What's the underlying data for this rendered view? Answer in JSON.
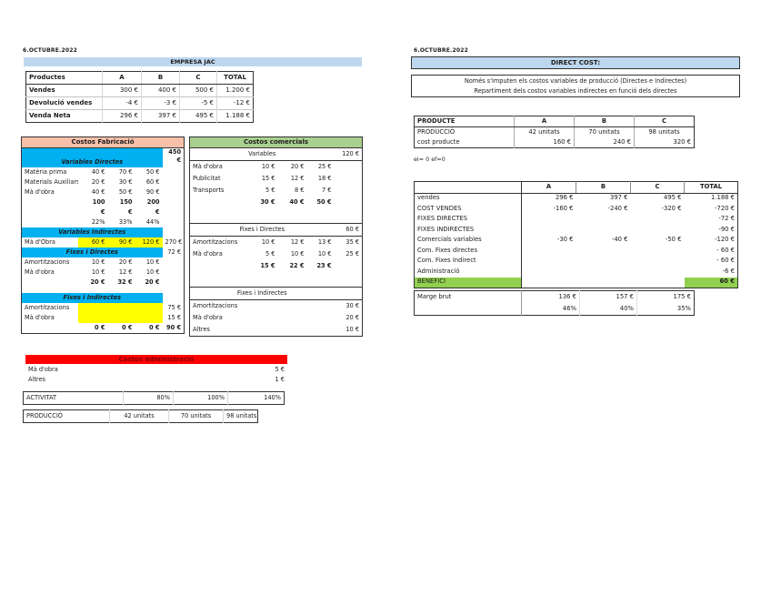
{
  "colors": {
    "lightblue": "#BDD7EE",
    "cyan": "#00B0F0",
    "salmon": "#F6BFA9",
    "green": "#A9D08E",
    "red": "#FF0000",
    "redtext": "#7F0000",
    "yellow": "#FFFF00",
    "benefit": "#92D050"
  },
  "left": {
    "date": "6.OCTUBRE.2022",
    "title_band": "EMPRESA JAC",
    "products": {
      "rows": [
        {
          "cls": "hd",
          "cells": [
            "Productes",
            {
              "t": "A",
              "c": "c"
            },
            {
              "t": "B",
              "c": "c"
            },
            {
              "t": "C",
              "c": "c"
            },
            {
              "t": "TOTAL",
              "c": "c"
            }
          ]
        },
        {
          "cells": [
            "Vendes",
            {
              "t": "300 €",
              "c": "r"
            },
            {
              "t": "400 €",
              "c": "r"
            },
            {
              "t": "500 €",
              "c": "r"
            },
            {
              "t": "1.200 €",
              "c": "r"
            }
          ]
        },
        {
          "cells": [
            "Devolució vendes",
            {
              "t": "-4 €",
              "c": "r"
            },
            {
              "t": "-3 €",
              "c": "r"
            },
            {
              "t": "-5 €",
              "c": "r"
            },
            {
              "t": "-12 €",
              "c": "r"
            }
          ]
        },
        {
          "cells": [
            "Venda Neta",
            {
              "t": "296 €",
              "c": "r"
            },
            {
              "t": "397 €",
              "c": "r"
            },
            {
              "t": "495 €",
              "c": "r"
            },
            {
              "t": "1.188 €",
              "c": "r"
            }
          ]
        }
      ]
    },
    "fabricacio": {
      "rows": [
        {
          "cls": "title",
          "cells": [
            {
              "t": "Costos Fabricació",
              "s": 5,
              "c": "salmon"
            }
          ]
        },
        {
          "cls": "h2",
          "cells": [
            {
              "t": "Variables Directes",
              "s": 4,
              "c": "cyan"
            },
            {
              "t": "450\n€",
              "c": "r pre b"
            }
          ]
        },
        {
          "cells": [
            "Matèria prima",
            {
              "t": "40 €",
              "c": "r"
            },
            {
              "t": "70 €",
              "c": "r"
            },
            {
              "t": "50 €",
              "c": "r"
            },
            ""
          ]
        },
        {
          "cells": [
            "Materials Auxiliars",
            {
              "t": "20 €",
              "c": "r"
            },
            {
              "t": "30 €",
              "c": "r"
            },
            {
              "t": "60 €",
              "c": "r"
            },
            ""
          ]
        },
        {
          "cells": [
            "Mà d'obra",
            {
              "t": "40 €",
              "c": "r"
            },
            {
              "t": "50 €",
              "c": "r"
            },
            {
              "t": "90 €",
              "c": "r"
            },
            ""
          ]
        },
        {
          "cells": [
            "",
            {
              "t": "100",
              "c": "r b"
            },
            {
              "t": "150",
              "c": "r b"
            },
            {
              "t": "200",
              "c": "r b"
            },
            ""
          ]
        },
        {
          "cells": [
            "",
            {
              "t": "€",
              "c": "r b"
            },
            {
              "t": "€",
              "c": "r b"
            },
            {
              "t": "€",
              "c": "r b"
            },
            ""
          ]
        },
        {
          "cells": [
            "",
            {
              "t": "22%",
              "c": "r"
            },
            {
              "t": "33%",
              "c": "r"
            },
            {
              "t": "44%",
              "c": "r"
            },
            ""
          ]
        },
        {
          "cells": [
            {
              "t": "Variables Indirectes",
              "s": 4,
              "c": "cyan"
            },
            ""
          ]
        },
        {
          "cells": [
            "Mà d'Obra",
            {
              "t": "60 €",
              "c": "r ylw"
            },
            {
              "t": "90 €",
              "c": "r ylw"
            },
            {
              "t": "120 €",
              "c": "r ylw"
            },
            {
              "t": "270 €",
              "c": "r"
            }
          ]
        },
        {
          "cells": [
            {
              "t": "Fixes i Directes",
              "s": 4,
              "c": "cyan"
            },
            {
              "t": "72 €",
              "c": "r"
            }
          ]
        },
        {
          "cells": [
            "Amortitzacions",
            {
              "t": "10 €",
              "c": "r"
            },
            {
              "t": "20 €",
              "c": "r"
            },
            {
              "t": "10 €",
              "c": "r"
            },
            ""
          ]
        },
        {
          "cells": [
            "Mà d'obra",
            {
              "t": "10 €",
              "c": "r"
            },
            {
              "t": "12 €",
              "c": "r"
            },
            {
              "t": "10 €",
              "c": "r"
            },
            ""
          ]
        },
        {
          "cells": [
            "",
            {
              "t": "20 €",
              "c": "r b"
            },
            {
              "t": "32 €",
              "c": "r b"
            },
            {
              "t": "20 €",
              "c": "r b"
            },
            ""
          ]
        },
        {
          "cls": "gap",
          "cells": [
            {
              "t": "",
              "s": 5
            }
          ]
        },
        {
          "cells": [
            {
              "t": "Fixes i Indirectes",
              "s": 4,
              "c": "cyan"
            },
            ""
          ]
        },
        {
          "cells": [
            "Amortitzacions",
            {
              "t": "",
              "c": "ylw"
            },
            {
              "t": "",
              "c": "ylw"
            },
            {
              "t": "",
              "c": "ylw"
            },
            {
              "t": "75 €",
              "c": "r"
            }
          ]
        },
        {
          "cells": [
            "Mà d'obra",
            {
              "t": "",
              "c": "ylw"
            },
            {
              "t": "",
              "c": "ylw"
            },
            {
              "t": "",
              "c": "ylw"
            },
            {
              "t": "15 €",
              "c": "r"
            }
          ]
        },
        {
          "cells": [
            "",
            {
              "t": "0 €",
              "c": "r b"
            },
            {
              "t": "0 €",
              "c": "r b"
            },
            {
              "t": "0 €",
              "c": "r b"
            },
            {
              "t": "90 €",
              "c": "r b"
            }
          ]
        }
      ]
    },
    "comercials": {
      "rows": [
        {
          "cls": "title",
          "cells": [
            {
              "t": "Costos comercials",
              "s": 5
            }
          ]
        },
        {
          "cls": "sub",
          "cells": [
            {
              "t": "Variables",
              "s": 4,
              "c": "c"
            },
            {
              "t": "120 €",
              "c": "r"
            }
          ]
        },
        {
          "cells": [
            "Mà d'obra",
            {
              "t": "10 €",
              "c": "r"
            },
            {
              "t": "20 €",
              "c": "r"
            },
            {
              "t": "25 €",
              "c": "r"
            },
            ""
          ]
        },
        {
          "cells": [
            "Publicitat",
            {
              "t": "15 €",
              "c": "r"
            },
            {
              "t": "12 €",
              "c": "r"
            },
            {
              "t": "18 €",
              "c": "r"
            },
            ""
          ]
        },
        {
          "cells": [
            "Transports",
            {
              "t": "5 €",
              "c": "r"
            },
            {
              "t": "8 €",
              "c": "r"
            },
            {
              "t": "7 €",
              "c": "r"
            },
            ""
          ]
        },
        {
          "cells": [
            "",
            {
              "t": "30 €",
              "c": "r b"
            },
            {
              "t": "40 €",
              "c": "r b"
            },
            {
              "t": "50 €",
              "c": "r b"
            },
            ""
          ]
        },
        {
          "cls": "gap",
          "cells": [
            {
              "t": "",
              "s": 5
            }
          ]
        },
        {
          "cls": "sub",
          "cells": [
            {
              "t": "Fixes i Directes",
              "s": 4,
              "c": "c"
            },
            {
              "t": "60 €",
              "c": "r"
            }
          ]
        },
        {
          "cells": [
            "Amortitzacions",
            {
              "t": "10 €",
              "c": "r"
            },
            {
              "t": "12 €",
              "c": "r"
            },
            {
              "t": "13 €",
              "c": "r"
            },
            {
              "t": "35 €",
              "c": "r"
            }
          ]
        },
        {
          "cells": [
            "Mà d'obra",
            {
              "t": "5 €",
              "c": "r"
            },
            {
              "t": "10 €",
              "c": "r"
            },
            {
              "t": "10 €",
              "c": "r"
            },
            {
              "t": "25 €",
              "c": "r"
            }
          ]
        },
        {
          "cells": [
            "",
            {
              "t": "15 €",
              "c": "r b"
            },
            {
              "t": "22 €",
              "c": "r b"
            },
            {
              "t": "23 €",
              "c": "r b"
            },
            ""
          ]
        },
        {
          "cls": "gap",
          "cells": [
            {
              "t": "",
              "s": 5
            }
          ]
        },
        {
          "cls": "sub",
          "cells": [
            {
              "t": "Fixes i Indirectes",
              "s": 4,
              "c": "c"
            },
            ""
          ]
        },
        {
          "cells": [
            "Amortitzacions",
            "",
            "",
            "",
            {
              "t": "30 €",
              "c": "r"
            }
          ]
        },
        {
          "cells": [
            "Mà d'obra",
            "",
            "",
            "",
            {
              "t": "20 €",
              "c": "r"
            }
          ]
        },
        {
          "cells": [
            "Altres",
            "",
            "",
            "",
            {
              "t": "10 €",
              "c": "r"
            }
          ]
        }
      ]
    },
    "administracio": {
      "title": "Costos administració",
      "rows": [
        {
          "cells": [
            "Mà d'obra",
            {
              "t": "5 €",
              "c": "r"
            }
          ]
        },
        {
          "cells": [
            "Altres",
            {
              "t": "1 €",
              "c": "r"
            }
          ]
        }
      ]
    },
    "activitat": {
      "rows": [
        {
          "cells": [
            "ACTIVITAT",
            {
              "t": "80%",
              "c": "r"
            },
            {
              "t": "100%",
              "c": "r"
            },
            {
              "t": "140%",
              "c": "r"
            }
          ]
        }
      ]
    },
    "produccio": {
      "rows": [
        {
          "cells": [
            "PRODUCCIÓ",
            {
              "t": "42 unitats",
              "c": "c"
            },
            {
              "t": "70 unitats",
              "c": "c"
            },
            {
              "t": "98 unitats",
              "c": "c"
            }
          ]
        }
      ]
    }
  },
  "right": {
    "date": "6.OCTUBRE.2022",
    "title_band": "DIRECT COST:",
    "note_line1": "Només s'imputen els costos variables de producció (Directes e Indirectes)",
    "note_line2": "Repartiment dels costos variables indirectes en funció dels directes",
    "producte": {
      "rows": [
        {
          "cls": "hd",
          "cells": [
            "PRODUCTE",
            {
              "t": "A",
              "c": "c"
            },
            {
              "t": "B",
              "c": "c"
            },
            {
              "t": "C",
              "c": "c"
            }
          ]
        },
        {
          "cells": [
            "PRODUCCIÓ",
            {
              "t": "42 unitats",
              "c": "c"
            },
            {
              "t": "70 unitats",
              "c": "c"
            },
            {
              "t": "98 unitats",
              "c": "c"
            }
          ]
        },
        {
          "cells": [
            "cost producte",
            {
              "t": "160 €",
              "c": "r"
            },
            {
              "t": "240 €",
              "c": "r"
            },
            {
              "t": "320 €",
              "c": "r"
            }
          ]
        }
      ]
    },
    "ei_note": "ei= 0 ef=0",
    "main": {
      "rows": [
        {
          "cls": "hd",
          "cells": [
            "",
            {
              "t": "A",
              "c": "c"
            },
            {
              "t": "B",
              "c": "c"
            },
            {
              "t": "C",
              "c": "c"
            },
            {
              "t": "TOTAL",
              "c": "c"
            }
          ]
        },
        {
          "cells": [
            "vendes",
            {
              "t": "296 €",
              "c": "r"
            },
            {
              "t": "397 €",
              "c": "r"
            },
            {
              "t": "495 €",
              "c": "r"
            },
            {
              "t": "1.188 €",
              "c": "r"
            }
          ]
        },
        {
          "cells": [
            "COST VENDES",
            {
              "t": "-160 €",
              "c": "r"
            },
            {
              "t": "-240 €",
              "c": "r"
            },
            {
              "t": "-320 €",
              "c": "r"
            },
            {
              "t": "-720 €",
              "c": "r"
            }
          ]
        },
        {
          "cells": [
            "FIXES DIRECTES",
            "",
            "",
            "",
            {
              "t": "-72 €",
              "c": "r"
            }
          ]
        },
        {
          "cells": [
            "FIXES INDIRECTES",
            "",
            "",
            "",
            {
              "t": "-90 €",
              "c": "r"
            }
          ]
        },
        {
          "cells": [
            "Comercials variables",
            {
              "t": "-30 €",
              "c": "r"
            },
            {
              "t": "-40 €",
              "c": "r"
            },
            {
              "t": "-50 €",
              "c": "r"
            },
            {
              "t": "-120 €",
              "c": "r"
            }
          ]
        },
        {
          "cells": [
            "Com. Fixes directes",
            "",
            "",
            "",
            {
              "t": "- 60 €",
              "c": "r"
            }
          ]
        },
        {
          "cells": [
            "Com. Fixes Indirect",
            "",
            "",
            "",
            {
              "t": "- 60 €",
              "c": "r"
            }
          ]
        },
        {
          "cells": [
            "Administració",
            "",
            "",
            "",
            {
              "t": "-6 €",
              "c": "r"
            }
          ]
        },
        {
          "cells": [
            {
              "t": "BENEFICI",
              "c": "grn"
            },
            "",
            "",
            "",
            {
              "t": "60 €",
              "c": "r grn b"
            }
          ]
        }
      ]
    },
    "marge": {
      "rows": [
        {
          "cells": [
            "Marge brut",
            {
              "t": "136 €",
              "c": "r"
            },
            {
              "t": "157 €",
              "c": "r"
            },
            {
              "t": "175 €",
              "c": "r"
            }
          ]
        },
        {
          "cells": [
            "",
            {
              "t": "46%",
              "c": "r"
            },
            {
              "t": "40%",
              "c": "r"
            },
            {
              "t": "35%",
              "c": "r"
            }
          ]
        }
      ]
    }
  }
}
